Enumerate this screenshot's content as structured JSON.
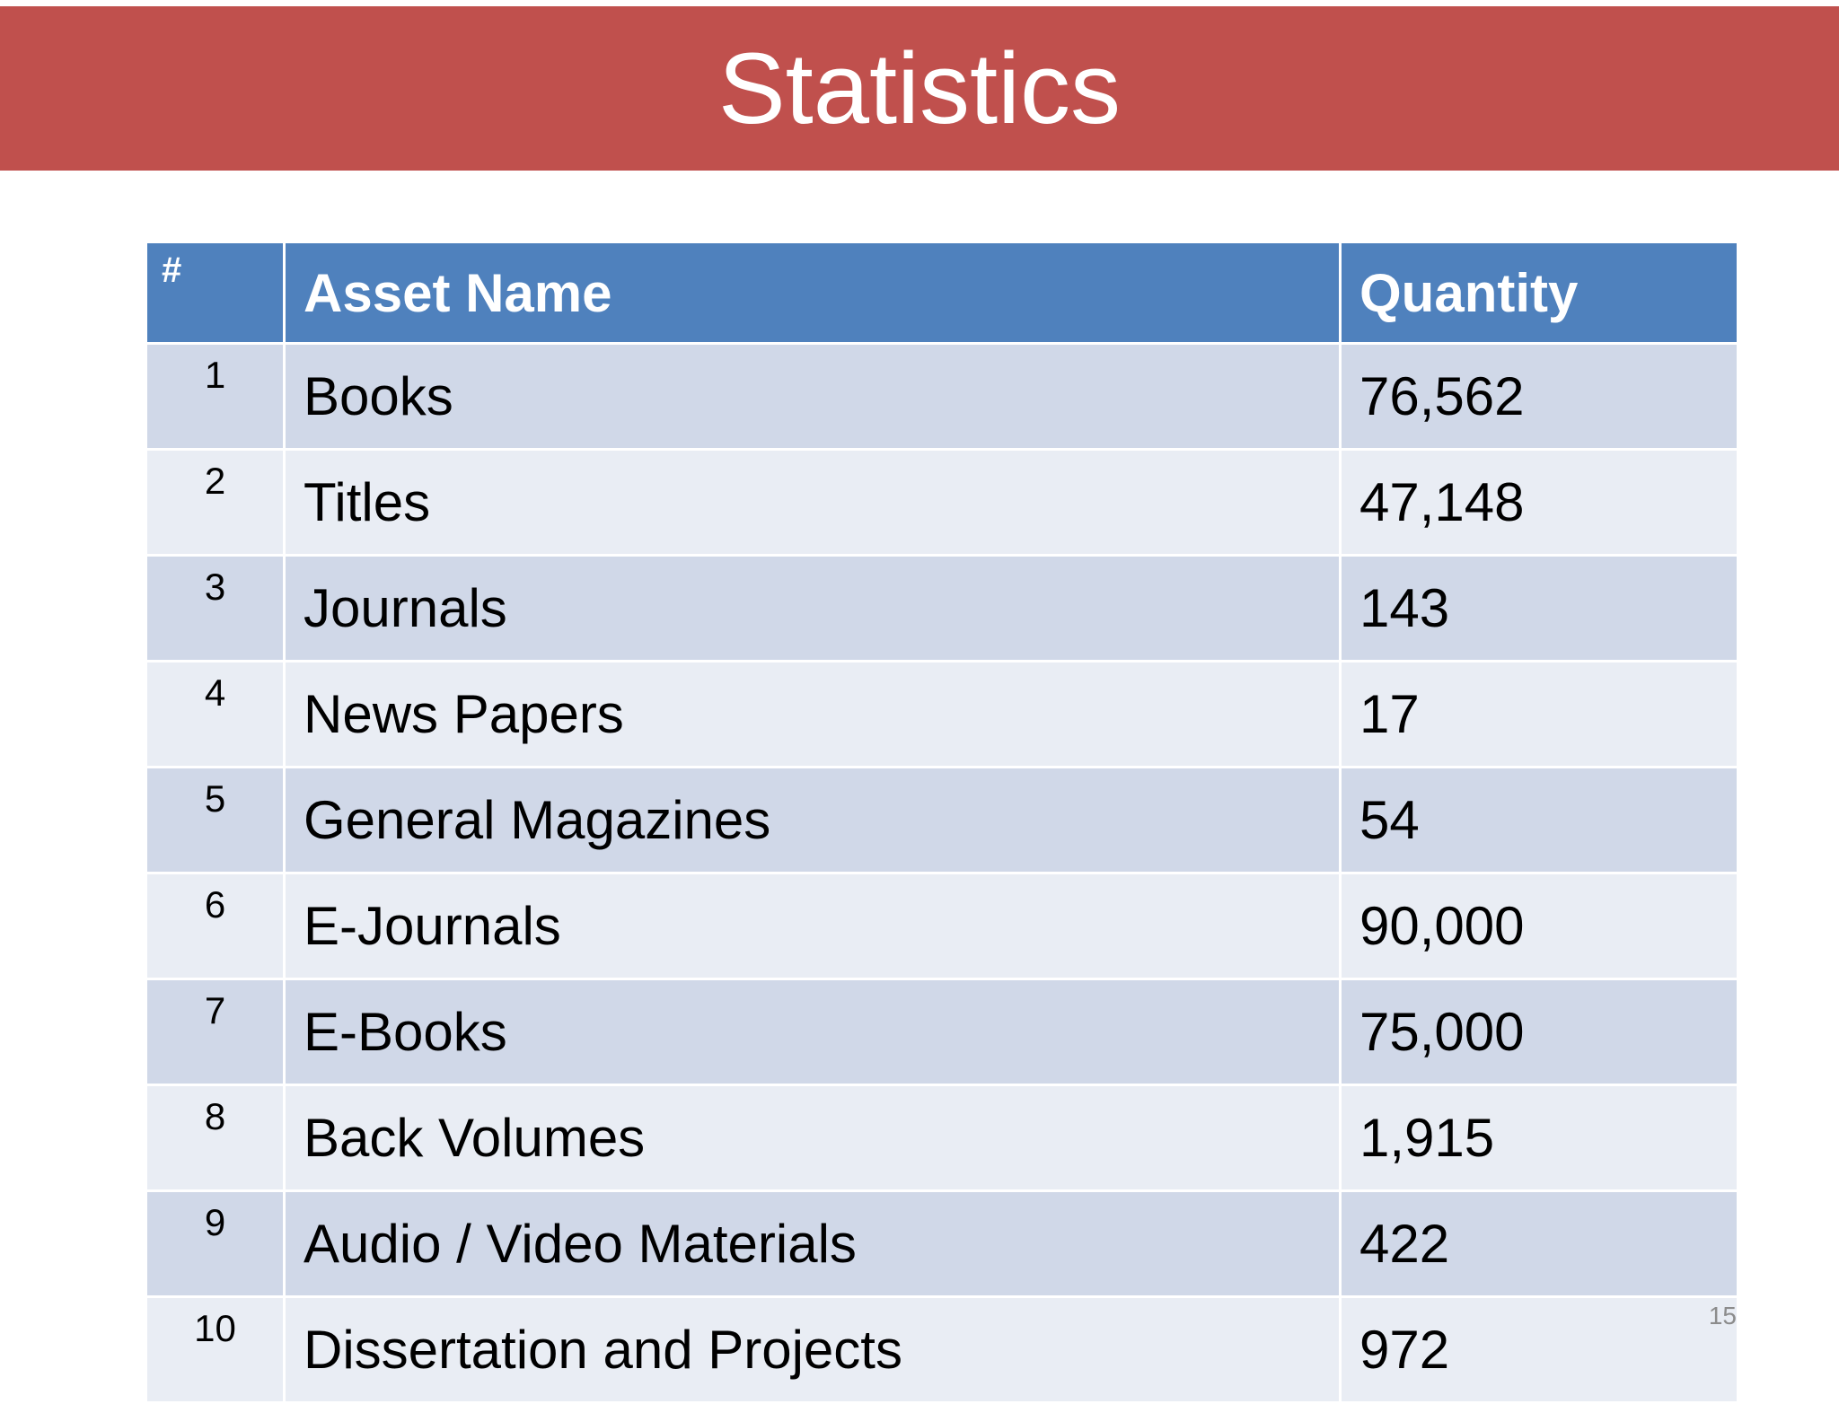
{
  "header": {
    "title": "Statistics"
  },
  "table": {
    "columns": [
      "#",
      "Asset Name",
      "Quantity"
    ],
    "rows": [
      [
        "1",
        "Books",
        "76,562"
      ],
      [
        "2",
        "Titles",
        "47,148"
      ],
      [
        "3",
        "Journals",
        "143"
      ],
      [
        "4",
        "News Papers",
        "17"
      ],
      [
        "5",
        "General Magazines",
        "54"
      ],
      [
        "6",
        "E-Journals",
        "90,000"
      ],
      [
        "7",
        "E-Books",
        "75,000"
      ],
      [
        "8",
        "Back Volumes",
        "1,915"
      ],
      [
        "9",
        "Audio / Video Materials",
        "422"
      ],
      [
        "10",
        "Dissertation and Projects",
        "972"
      ]
    ]
  },
  "page_number": "15"
}
